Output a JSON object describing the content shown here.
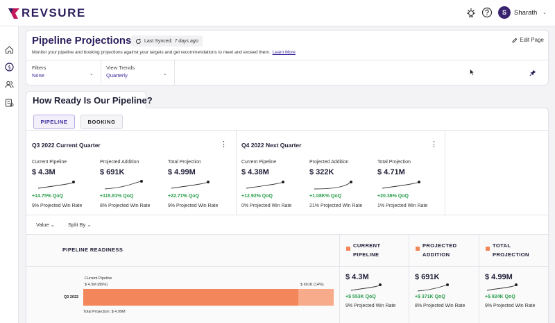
{
  "app": {
    "brand": "REVSURE",
    "user_initial": "S",
    "user_name": "Sharath"
  },
  "header": {
    "title": "Pipeline Projections",
    "last_synced_label": "Last Synced:",
    "last_synced_value": "7 days ago",
    "edit_page": "Edit Page",
    "subtitle": "Monitor your pipeline and booking projections against your targets and get recommendations to meet and exceed them.",
    "learn_more": "Learn More"
  },
  "filters": [
    {
      "label": "Filters",
      "value": "None"
    },
    {
      "label": "View Trends",
      "value": "Quarterly"
    }
  ],
  "section": {
    "title": "How Ready Is Our Pipeline?",
    "tabs": [
      "PIPELINE",
      "BOOKING"
    ],
    "active_tab": "PIPELINE"
  },
  "quarters": [
    {
      "title": "Q3 2022 Current Quarter",
      "metrics": [
        {
          "label": "Current Pipeline",
          "value": "$ 4.3M",
          "change": "+14.75% QoQ",
          "sub": "9% Projected Win Rate"
        },
        {
          "label": "Projected Addition",
          "value": "$ 691K",
          "change": "+115.81% QoQ",
          "sub": "8% Projected Win Rate"
        },
        {
          "label": "Total Projection",
          "value": "$ 4.99M",
          "change": "+22.71% QoQ",
          "sub": "9% Projected Win Rate"
        }
      ]
    },
    {
      "title": "Q4 2022 Next Quarter",
      "metrics": [
        {
          "label": "Current Pipeline",
          "value": "$ 4.38M",
          "change": "+12.92% QoQ",
          "sub": "0% Projected Win Rate"
        },
        {
          "label": "Projected Addition",
          "value": "$ 322K",
          "change": "+1.08K% QoQ",
          "sub": "21% Projected Win Rate"
        },
        {
          "label": "Total Projection",
          "value": "$ 4.71M",
          "change": "+20.36% QoQ",
          "sub": "1% Projected Win Rate"
        }
      ]
    }
  ],
  "controls": {
    "value_dropdown": "Value",
    "split_dropdown": "Split By"
  },
  "readiness": {
    "title": "PIPELINE READINESS",
    "columns": [
      {
        "line1": "CURRENT",
        "line2": "PIPELINE",
        "value": "$ 4.3M",
        "change": "+$ 553K QoQ",
        "sub": "9% Projected Win Rate"
      },
      {
        "line1": "PROJECTED",
        "line2": "ADDITION",
        "value": "$ 691K",
        "change": "+$ 371K QoQ",
        "sub": "8% Projected Win Rate"
      },
      {
        "line1": "TOTAL",
        "line2": "PROJECTION",
        "value": "$ 4.99M",
        "change": "+$ 924K QoQ",
        "sub": "9% Projected Win Rate"
      }
    ],
    "bar": {
      "row_label": "Q3 2022",
      "current_label": "Current Pipeline",
      "current_value": "$ 4.3M (86%)",
      "current_pct": 86,
      "addition_value": "$ 691K (14%)",
      "addition_pct": 14,
      "total_label": "Total Projection: $ 4.99M"
    }
  },
  "colors": {
    "brand": "#2c1d5c",
    "accent": "#3a2a9a",
    "positive": "#2a9d4a",
    "bar_primary": "#f3865a",
    "bar_secondary": "#f7ab8b"
  }
}
